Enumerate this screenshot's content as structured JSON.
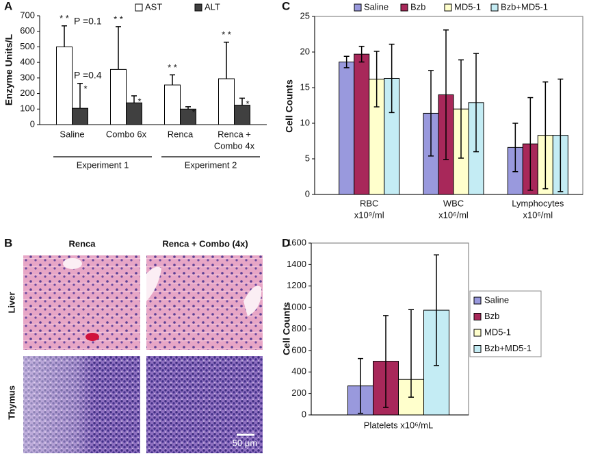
{
  "chart_data": [
    {
      "type": "bar",
      "panel_label": "A",
      "y_label": "Enzyme Units/L",
      "categories": [
        [
          "Saline"
        ],
        [
          "Combo 6x"
        ],
        [
          "Renca"
        ],
        [
          "Renca +",
          "Combo 4x"
        ]
      ],
      "group_labels": [
        "Experiment 1",
        "Experiment 2"
      ],
      "series": [
        {
          "name": "AST",
          "color": "#ffffff",
          "values": [
            500,
            355,
            255,
            295
          ],
          "errors": [
            135,
            275,
            65,
            235
          ],
          "annotations": [
            "* *",
            "* *",
            "* *",
            "* *"
          ]
        },
        {
          "name": "ALT",
          "color": "#404040",
          "values": [
            105,
            140,
            100,
            125
          ],
          "errors": [
            160,
            45,
            15,
            45
          ],
          "annotations": [
            "*",
            "*",
            "*",
            "*"
          ]
        }
      ],
      "annotations": [
        "P =0.1",
        "P =0.4"
      ],
      "error_direction": "up",
      "legend": "top",
      "ylim": [
        0,
        700
      ],
      "yticks": [
        0,
        100,
        200,
        300,
        400,
        500,
        600,
        700
      ],
      "grid": false
    },
    {
      "type": "bar",
      "panel_label": "C",
      "y_label": "Cell Counts",
      "categories": [
        [
          "RBC",
          "x10⁹/ml"
        ],
        [
          "WBC",
          "x10⁶/ml"
        ],
        [
          "Lymphocytes",
          "x10⁶/ml"
        ]
      ],
      "series": [
        {
          "name": "Saline",
          "color": "#9999dd",
          "values": [
            18.6,
            11.4,
            6.6
          ],
          "errors": [
            0.8,
            6.0,
            3.4
          ]
        },
        {
          "name": "Bzb",
          "color": "#a8285a",
          "values": [
            19.7,
            14.0,
            7.1
          ],
          "errors": [
            1.1,
            9.1,
            6.5
          ]
        },
        {
          "name": "MD5-1",
          "color": "#ffffcc",
          "values": [
            16.2,
            12.0,
            8.3
          ],
          "errors": [
            3.9,
            6.9,
            7.5
          ]
        },
        {
          "name": "Bzb+MD5-1",
          "color": "#c4ecf4",
          "values": [
            16.3,
            12.9,
            8.3
          ],
          "errors": [
            4.8,
            6.9,
            7.9
          ]
        }
      ],
      "error_direction": "both",
      "legend": "top",
      "ylim": [
        0,
        25
      ],
      "yticks": [
        0,
        5,
        10,
        15,
        20,
        25
      ],
      "grid": false
    },
    {
      "type": "bar",
      "panel_label": "D",
      "y_label": "Cell Counts",
      "categories": [
        [
          "Platelets x10⁶/mL"
        ]
      ],
      "series": [
        {
          "name": "Saline",
          "color": "#9999dd",
          "values": [
            270
          ],
          "errors": [
            [
              255,
              255
            ]
          ]
        },
        {
          "name": "Bzb",
          "color": "#a8285a",
          "values": [
            500
          ],
          "errors": [
            [
              430,
              425
            ]
          ]
        },
        {
          "name": "MD5-1",
          "color": "#ffffcc",
          "values": [
            330
          ],
          "errors": [
            [
              165,
              650
            ]
          ]
        },
        {
          "name": "Bzb+MD5-1",
          "color": "#c4ecf4",
          "values": [
            975
          ],
          "errors": [
            [
              515,
              515
            ]
          ]
        }
      ],
      "error_direction": "both",
      "legend": "right",
      "ylim": [
        0,
        1600
      ],
      "yticks": [
        0,
        200,
        400,
        600,
        800,
        1000,
        1200,
        1400,
        1600
      ],
      "grid": false
    }
  ],
  "histology": {
    "panel_label": "B",
    "columns": [
      "Renca",
      "Renca + Combo (4x)"
    ],
    "rows": [
      "Liver",
      "Thymus"
    ],
    "scale_bar": "50 μm"
  }
}
